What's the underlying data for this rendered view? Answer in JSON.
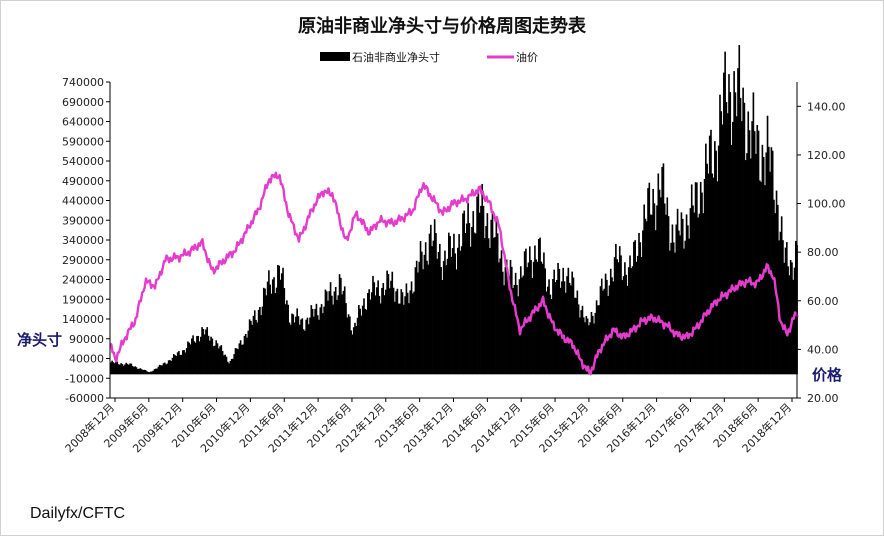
{
  "chart_data": {
    "type": "bar+line",
    "title": "原油非商业净头寸与价格周图走势表",
    "legend": [
      {
        "name": "石油非商业净头寸",
        "color": "#000000",
        "kind": "bar"
      },
      {
        "name": "油价",
        "color": "#e43ccd",
        "kind": "line"
      }
    ],
    "ylabel_left": "净头寸",
    "ylabel_right": "价格",
    "source": "Dailyfx/CFTC",
    "ylim_left": [
      -60000,
      740000
    ],
    "yticks_left": [
      "740000",
      "690000",
      "640000",
      "590000",
      "540000",
      "490000",
      "440000",
      "390000",
      "340000",
      "290000",
      "240000",
      "190000",
      "140000",
      "90000",
      "40000",
      "-10000",
      "-60000"
    ],
    "ylim_right": [
      20,
      150
    ],
    "yticks_right": [
      "140.00",
      "120.00",
      "100.00",
      "80.00",
      "60.00",
      "40.00",
      "20.00"
    ],
    "xticks": [
      "2008年12月",
      "2009年6月",
      "2009年12月",
      "2010年6月",
      "2010年12月",
      "2011年6月",
      "2011年12月",
      "2012年6月",
      "2012年12月",
      "2013年6月",
      "2013年12月",
      "2014年6月",
      "2014年12月",
      "2015年6月",
      "2015年12月",
      "2016年6月",
      "2016年12月",
      "2017年6月",
      "2017年12月",
      "2018年6月",
      "2018年12月"
    ],
    "x_start": 2008.92,
    "x_end": 2019.2,
    "net_position_anchors": [
      [
        2008.92,
        30000
      ],
      [
        2009.2,
        25000
      ],
      [
        2009.5,
        5000
      ],
      [
        2009.75,
        30000
      ],
      [
        2010.0,
        60000
      ],
      [
        2010.3,
        110000
      ],
      [
        2010.5,
        80000
      ],
      [
        2010.7,
        30000
      ],
      [
        2010.9,
        90000
      ],
      [
        2011.1,
        150000
      ],
      [
        2011.3,
        230000
      ],
      [
        2011.45,
        260000
      ],
      [
        2011.6,
        150000
      ],
      [
        2011.8,
        130000
      ],
      [
        2012.0,
        160000
      ],
      [
        2012.2,
        200000
      ],
      [
        2012.35,
        230000
      ],
      [
        2012.55,
        110000
      ],
      [
        2012.75,
        200000
      ],
      [
        2012.95,
        220000
      ],
      [
        2013.15,
        230000
      ],
      [
        2013.3,
        180000
      ],
      [
        2013.5,
        260000
      ],
      [
        2013.7,
        350000
      ],
      [
        2013.9,
        290000
      ],
      [
        2014.1,
        330000
      ],
      [
        2014.3,
        390000
      ],
      [
        2014.45,
        420000
      ],
      [
        2014.6,
        380000
      ],
      [
        2014.8,
        280000
      ],
      [
        2014.95,
        230000
      ],
      [
        2015.15,
        280000
      ],
      [
        2015.3,
        320000
      ],
      [
        2015.5,
        220000
      ],
      [
        2015.7,
        260000
      ],
      [
        2015.9,
        200000
      ],
      [
        2016.05,
        120000
      ],
      [
        2016.3,
        220000
      ],
      [
        2016.5,
        290000
      ],
      [
        2016.7,
        260000
      ],
      [
        2016.85,
        360000
      ],
      [
        2017.0,
        430000
      ],
      [
        2017.15,
        480000
      ],
      [
        2017.35,
        340000
      ],
      [
        2017.5,
        380000
      ],
      [
        2017.65,
        420000
      ],
      [
        2017.8,
        500000
      ],
      [
        2017.95,
        560000
      ],
      [
        2018.05,
        650000
      ],
      [
        2018.15,
        720000
      ],
      [
        2018.3,
        710000
      ],
      [
        2018.45,
        640000
      ],
      [
        2018.6,
        570000
      ],
      [
        2018.75,
        560000
      ],
      [
        2018.9,
        440000
      ],
      [
        2019.0,
        290000
      ],
      [
        2019.1,
        280000
      ],
      [
        2019.2,
        320000
      ]
    ],
    "oil_price_anchors": [
      [
        2008.92,
        42
      ],
      [
        2009.0,
        36
      ],
      [
        2009.15,
        45
      ],
      [
        2009.3,
        52
      ],
      [
        2009.45,
        68
      ],
      [
        2009.6,
        66
      ],
      [
        2009.75,
        77
      ],
      [
        2009.95,
        78
      ],
      [
        2010.1,
        80
      ],
      [
        2010.3,
        84
      ],
      [
        2010.45,
        72
      ],
      [
        2010.6,
        76
      ],
      [
        2010.8,
        81
      ],
      [
        2010.95,
        88
      ],
      [
        2011.15,
        98
      ],
      [
        2011.3,
        110
      ],
      [
        2011.45,
        112
      ],
      [
        2011.6,
        95
      ],
      [
        2011.75,
        85
      ],
      [
        2011.95,
        98
      ],
      [
        2012.1,
        105
      ],
      [
        2012.25,
        104
      ],
      [
        2012.45,
        84
      ],
      [
        2012.6,
        96
      ],
      [
        2012.8,
        88
      ],
      [
        2012.95,
        93
      ],
      [
        2013.15,
        92
      ],
      [
        2013.3,
        94
      ],
      [
        2013.45,
        97
      ],
      [
        2013.6,
        108
      ],
      [
        2013.75,
        102
      ],
      [
        2013.9,
        96
      ],
      [
        2014.05,
        100
      ],
      [
        2014.25,
        102
      ],
      [
        2014.45,
        106
      ],
      [
        2014.6,
        100
      ],
      [
        2014.75,
        90
      ],
      [
        2014.9,
        66
      ],
      [
        2015.05,
        48
      ],
      [
        2015.25,
        55
      ],
      [
        2015.4,
        60
      ],
      [
        2015.55,
        50
      ],
      [
        2015.7,
        45
      ],
      [
        2015.85,
        42
      ],
      [
        2015.95,
        36
      ],
      [
        2016.1,
        30
      ],
      [
        2016.25,
        40
      ],
      [
        2016.45,
        48
      ],
      [
        2016.6,
        45
      ],
      [
        2016.75,
        48
      ],
      [
        2016.9,
        52
      ],
      [
        2017.05,
        53
      ],
      [
        2017.25,
        50
      ],
      [
        2017.4,
        46
      ],
      [
        2017.55,
        45
      ],
      [
        2017.7,
        49
      ],
      [
        2017.85,
        55
      ],
      [
        2018.0,
        60
      ],
      [
        2018.15,
        63
      ],
      [
        2018.3,
        66
      ],
      [
        2018.45,
        68
      ],
      [
        2018.6,
        67
      ],
      [
        2018.75,
        74
      ],
      [
        2018.85,
        70
      ],
      [
        2018.95,
        52
      ],
      [
        2019.05,
        46
      ],
      [
        2019.15,
        53
      ],
      [
        2019.2,
        55
      ]
    ]
  }
}
